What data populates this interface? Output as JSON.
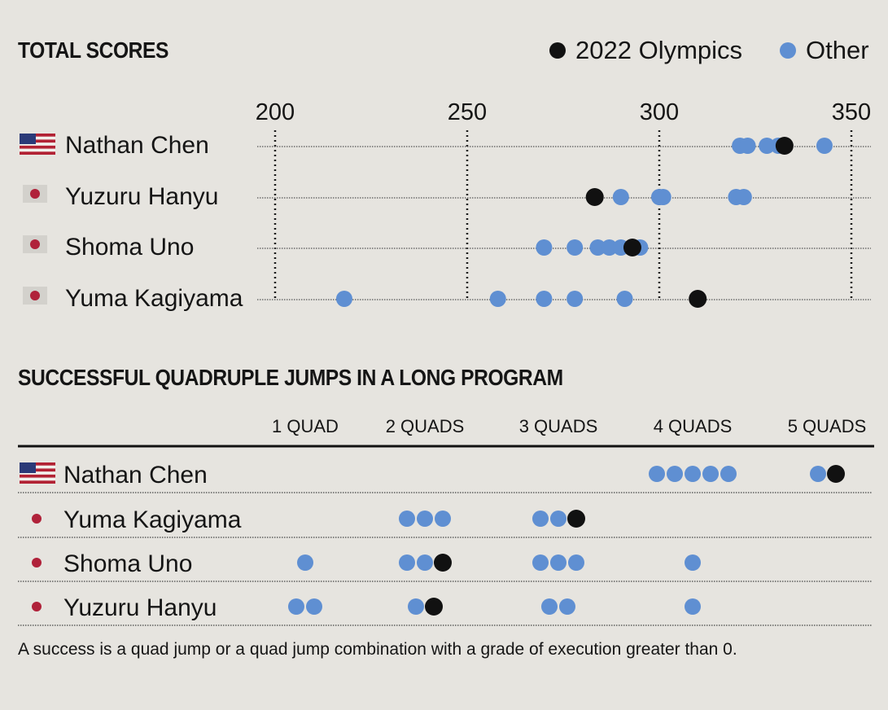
{
  "colors": {
    "olympics": "#111111",
    "other": "#5f8fd2",
    "background": "#e6e4df"
  },
  "legend": {
    "olympics_label": "2022 Olympics",
    "other_label": "Other"
  },
  "footnote": "A success is a quad jump or a quad jump combination with a grade of execution greater than 0.",
  "chart_data": [
    {
      "type": "scatter",
      "title": "TOTAL SCORES",
      "xlim": [
        200,
        350
      ],
      "xticks": [
        200,
        250,
        300,
        350
      ],
      "rows": [
        {
          "name": "Nathan Chen",
          "flag": "us-flag-icon",
          "other": [
            321,
            323,
            328,
            331,
            343
          ],
          "olympics": [
            332.6
          ]
        },
        {
          "name": "Yuzuru Hanyu",
          "flag": "japan-flag-icon",
          "other": [
            290,
            300,
            301,
            320,
            322
          ],
          "olympics": [
            283.2
          ]
        },
        {
          "name": "Shoma Uno",
          "flag": "japan-flag-icon",
          "other": [
            270,
            278,
            284,
            287,
            290,
            295
          ],
          "olympics": [
            293
          ]
        },
        {
          "name": "Yuma Kagiyama",
          "flag": "japan-flag-icon",
          "other": [
            218,
            258,
            270,
            278,
            291
          ],
          "olympics": [
            310
          ]
        }
      ]
    },
    {
      "type": "scatter",
      "title": "SUCCESSFUL QUADRUPLE JUMPS IN A LONG PROGRAM",
      "categories": [
        "1 QUAD",
        "2 QUADS",
        "3 QUADS",
        "4 QUADS",
        "5 QUADS"
      ],
      "rows": [
        {
          "name": "Nathan Chen",
          "flag": "us-flag-icon",
          "counts": [
            {
              "other": 0,
              "olympics": 0
            },
            {
              "other": 0,
              "olympics": 0
            },
            {
              "other": 0,
              "olympics": 0
            },
            {
              "other": 5,
              "olympics": 0
            },
            {
              "other": 1,
              "olympics": 1
            }
          ]
        },
        {
          "name": "Yuma Kagiyama",
          "flag": "japan-flag-icon",
          "counts": [
            {
              "other": 0,
              "olympics": 0
            },
            {
              "other": 3,
              "olympics": 0
            },
            {
              "other": 2,
              "olympics": 1
            },
            {
              "other": 0,
              "olympics": 0
            },
            {
              "other": 0,
              "olympics": 0
            }
          ]
        },
        {
          "name": "Shoma Uno",
          "flag": "japan-flag-icon",
          "counts": [
            {
              "other": 1,
              "olympics": 0
            },
            {
              "other": 2,
              "olympics": 1
            },
            {
              "other": 3,
              "olympics": 0
            },
            {
              "other": 1,
              "olympics": 0
            },
            {
              "other": 0,
              "olympics": 0
            }
          ]
        },
        {
          "name": "Yuzuru Hanyu",
          "flag": "japan-flag-icon",
          "counts": [
            {
              "other": 2,
              "olympics": 0
            },
            {
              "other": 1,
              "olympics": 1
            },
            {
              "other": 2,
              "olympics": 0
            },
            {
              "other": 1,
              "olympics": 0
            },
            {
              "other": 0,
              "olympics": 0
            }
          ]
        }
      ]
    }
  ]
}
